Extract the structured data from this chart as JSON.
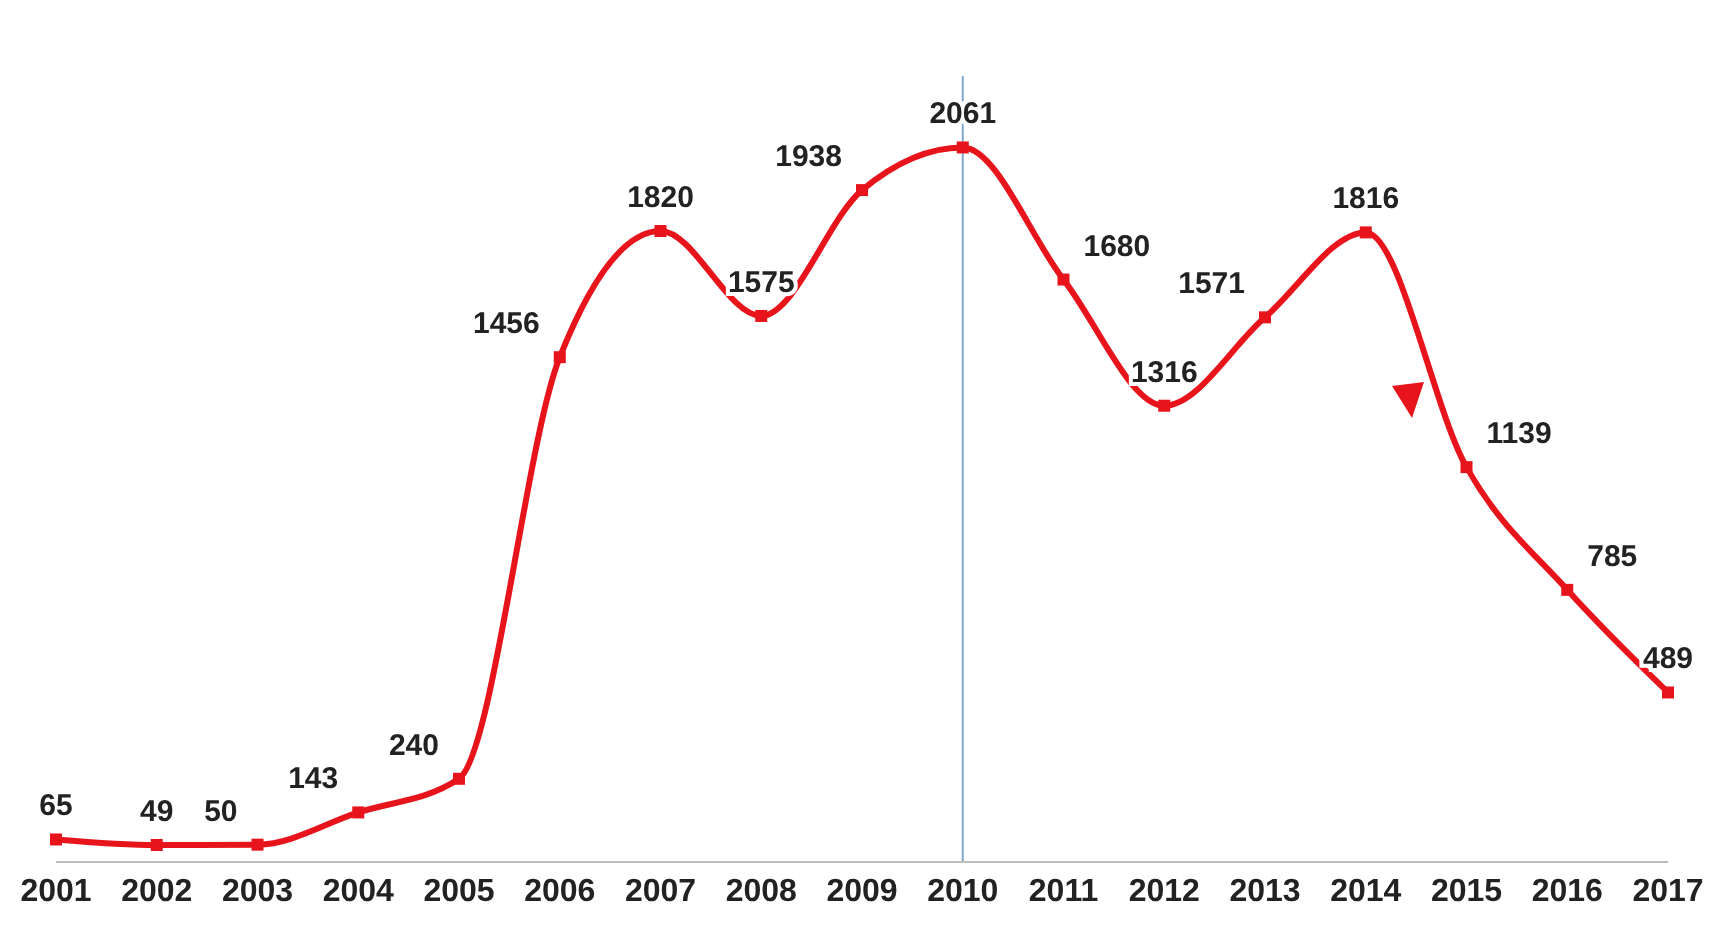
{
  "chart_data": {
    "type": "line",
    "categories": [
      "2001",
      "2002",
      "2003",
      "2004",
      "2005",
      "2006",
      "2007",
      "2008",
      "2009",
      "2010",
      "2011",
      "2012",
      "2013",
      "2014",
      "2015",
      "2016",
      "2017"
    ],
    "series": [
      {
        "color": "#e8141b",
        "values": [
          65,
          49,
          50,
          143,
          240,
          1456,
          1820,
          1575,
          1938,
          2061,
          1680,
          1316,
          1571,
          1816,
          1139,
          785,
          489
        ]
      }
    ],
    "data_labels": true,
    "marker": "square",
    "line_style": "solid",
    "tick_labels": "x",
    "ref_lines": [
      {
        "axis": "x",
        "value": "2010",
        "color": "#7fa7d0"
      }
    ]
  }
}
